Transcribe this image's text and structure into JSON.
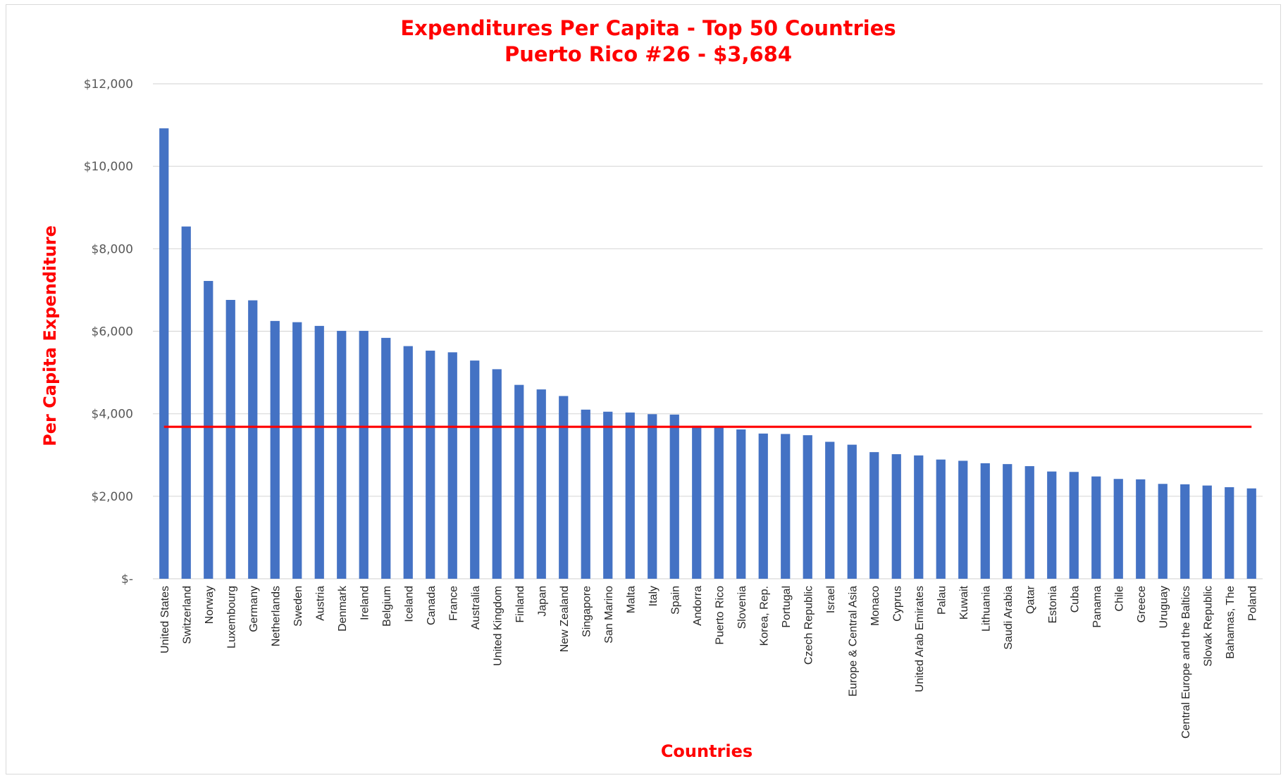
{
  "chart_data": {
    "type": "bar",
    "title": "Expenditures Per Capita - Top 50 Countries",
    "subtitle": "Puerto Rico #26 - $3,684",
    "xlabel": "Countries",
    "ylabel": "Per Capita Expenditure",
    "ylim": [
      0,
      12000
    ],
    "ytick_values": [
      0,
      2000,
      4000,
      6000,
      8000,
      10000,
      12000
    ],
    "ytick_labels": [
      "$-",
      "$2,000",
      "$4,000",
      "$6,000",
      "$8,000",
      "$10,000",
      "$12,000"
    ],
    "grid": true,
    "legend": "none",
    "bar_color": "#4472c4",
    "reference_line": {
      "value": 3684,
      "color": "#ff0000"
    },
    "categories": [
      "United States",
      "Switzerland",
      "Norway",
      "Luxembourg",
      "Germany",
      "Netherlands",
      "Sweden",
      "Austria",
      "Denmark",
      "Ireland",
      "Belgium",
      "Iceland",
      "Canada",
      "France",
      "Australia",
      "United Kingdom",
      "Finland",
      "Japan",
      "New Zealand",
      "Singapore",
      "San Marino",
      "Malta",
      "Italy",
      "Spain",
      "Andorra",
      "Puerto Rico",
      "Slovenia",
      "Korea, Rep.",
      "Portugal",
      "Czech Republic",
      "Israel",
      "Europe & Central Asia",
      "Monaco",
      "Cyprus",
      "United Arab Emirates",
      "Palau",
      "Kuwait",
      "Lithuania",
      "Saudi Arabia",
      "Qatar",
      "Estonia",
      "Cuba",
      "Panama",
      "Chile",
      "Greece",
      "Uruguay",
      "Central Europe and the Baltics",
      "Slovak Republic",
      "Bahamas, The",
      "Poland"
    ],
    "values": [
      10920,
      8540,
      7220,
      6760,
      6750,
      6250,
      6220,
      6130,
      6010,
      6010,
      5840,
      5640,
      5530,
      5490,
      5290,
      5080,
      4700,
      4590,
      4430,
      4100,
      4050,
      4030,
      3990,
      3980,
      3710,
      3684,
      3620,
      3520,
      3510,
      3480,
      3320,
      3250,
      3070,
      3020,
      2990,
      2890,
      2860,
      2800,
      2780,
      2730,
      2600,
      2590,
      2480,
      2420,
      2410,
      2300,
      2290,
      2260,
      2220,
      2190
    ]
  }
}
